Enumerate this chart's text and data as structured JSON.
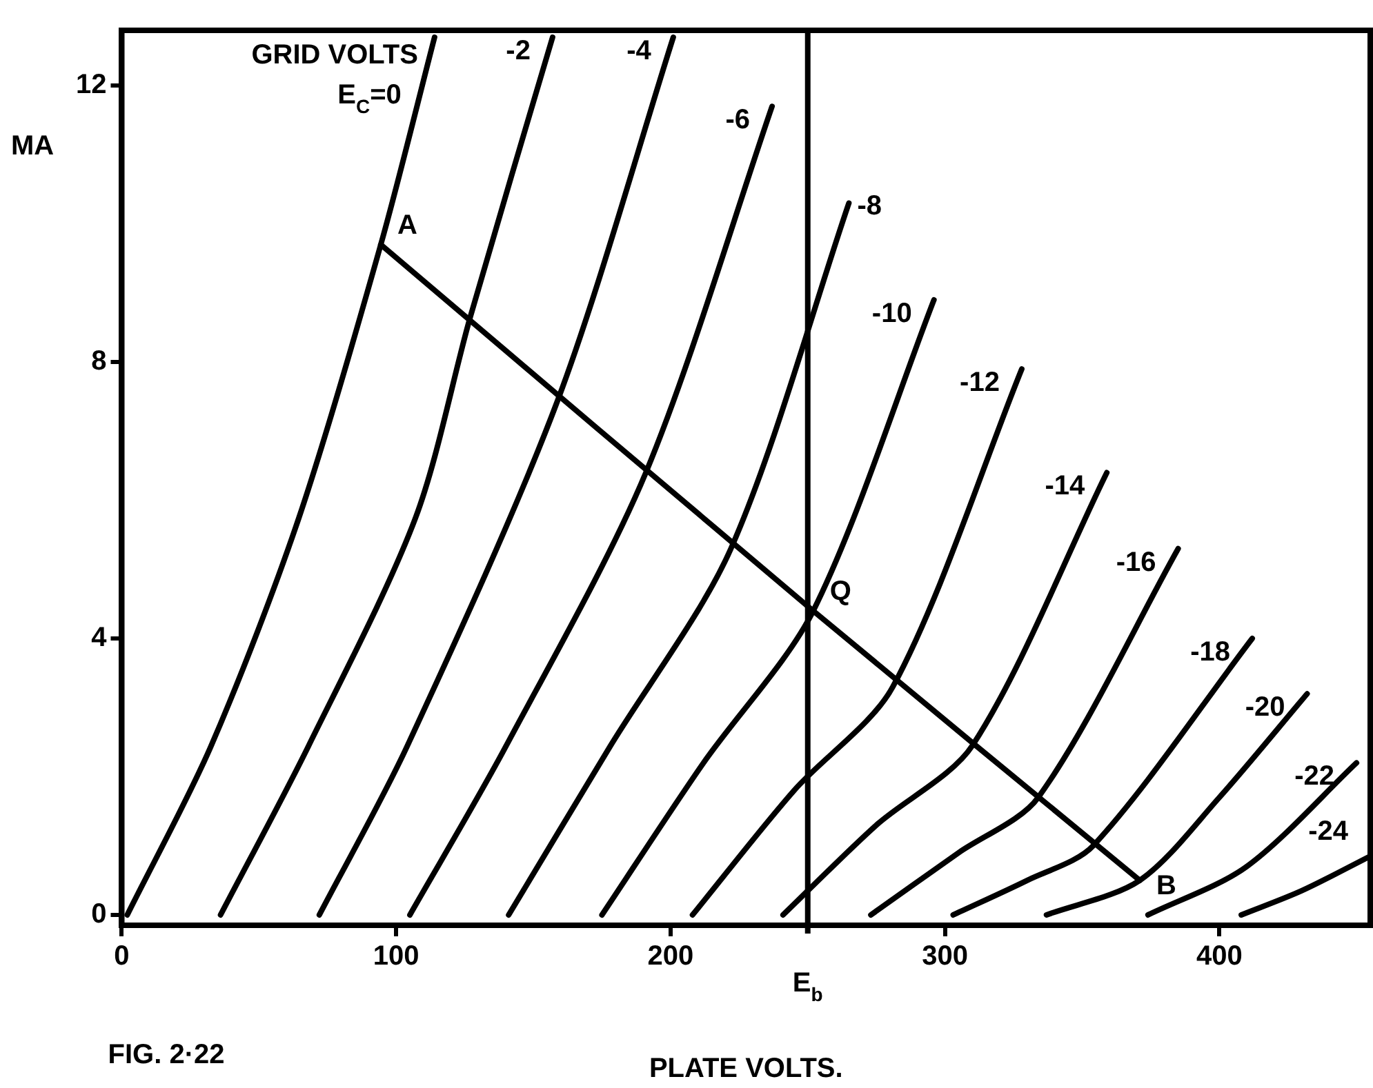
{
  "chart_data": {
    "type": "line",
    "xlabel": "PLATE VOLTS.",
    "ylabel": "MA",
    "legend_title": "GRID VOLTS",
    "xlim": [
      0,
      455
    ],
    "ylim": [
      -0.15,
      12.8
    ],
    "xticks": [
      0,
      100,
      200,
      300,
      400
    ],
    "yticks": [
      0,
      4,
      8,
      12
    ],
    "marker": "none",
    "line_style": "solid",
    "ref_lines": [
      {
        "axis": "x",
        "value": 250,
        "label": "E$_{b}$",
        "color": "#000000"
      }
    ],
    "annotations": [
      {
        "text": "A",
        "x": 94.4,
        "y": 9.7
      },
      {
        "text": "Q",
        "x": 252,
        "y": 4.4
      },
      {
        "text": "B",
        "x": 371,
        "y": 0.5
      },
      "FIG. 2·22"
    ],
    "series": [
      {
        "name": "E$_{C}$=0",
        "color": "#000000",
        "x": [
          2,
          32.5,
          64.5,
          94.4,
          114
        ],
        "values": [
          0,
          2.44,
          5.74,
          9.7,
          12.7
        ]
      },
      {
        "name": "-2",
        "color": "#000000",
        "x": [
          36,
          68,
          107,
          127,
          157
        ],
        "values": [
          0,
          2.44,
          5.74,
          8.65,
          12.7
        ]
      },
      {
        "name": "-4",
        "color": "#000000",
        "x": [
          72,
          104,
          159,
          201
        ],
        "values": [
          0,
          2.44,
          7.46,
          12.7
        ]
      },
      {
        "name": "-6",
        "color": "#000000",
        "x": [
          105,
          140,
          191,
          237
        ],
        "values": [
          0,
          2.44,
          6.4,
          11.7
        ]
      },
      {
        "name": "-8",
        "color": "#000000",
        "x": [
          141,
          178,
          222,
          265
        ],
        "values": [
          0,
          2.44,
          5.3,
          10.3
        ]
      },
      {
        "name": "-10",
        "color": "#000000",
        "x": [
          175,
          212,
          252,
          296
        ],
        "values": [
          0,
          2.2,
          4.4,
          8.9
        ]
      },
      {
        "name": "-12",
        "color": "#000000",
        "x": [
          208,
          245,
          281,
          328
        ],
        "values": [
          0,
          1.8,
          3.3,
          7.9
        ]
      },
      {
        "name": "-14",
        "color": "#000000",
        "x": [
          241,
          275,
          310,
          359
        ],
        "values": [
          0,
          1.3,
          2.45,
          6.4
        ]
      },
      {
        "name": "-16",
        "color": "#000000",
        "x": [
          273,
          305,
          334,
          385
        ],
        "values": [
          0,
          0.9,
          1.7,
          5.3
        ]
      },
      {
        "name": "-18",
        "color": "#000000",
        "x": [
          303,
          330,
          354,
          412
        ],
        "values": [
          0,
          0.5,
          1.0,
          4.0
        ]
      },
      {
        "name": "-20",
        "color": "#000000",
        "x": [
          337,
          371,
          400,
          432
        ],
        "values": [
          0,
          0.5,
          1.7,
          3.2
        ]
      },
      {
        "name": "-22",
        "color": "#000000",
        "x": [
          374,
          410,
          450
        ],
        "values": [
          0,
          0.7,
          2.2
        ]
      },
      {
        "name": "-24",
        "color": "#000000",
        "x": [
          408,
          430,
          455
        ],
        "values": [
          0,
          0.35,
          0.85
        ]
      },
      {
        "type": "line",
        "color": "#000000",
        "x": [
          94.4,
          252,
          371
        ],
        "values": [
          9.7,
          4.4,
          0.5
        ]
      }
    ]
  }
}
